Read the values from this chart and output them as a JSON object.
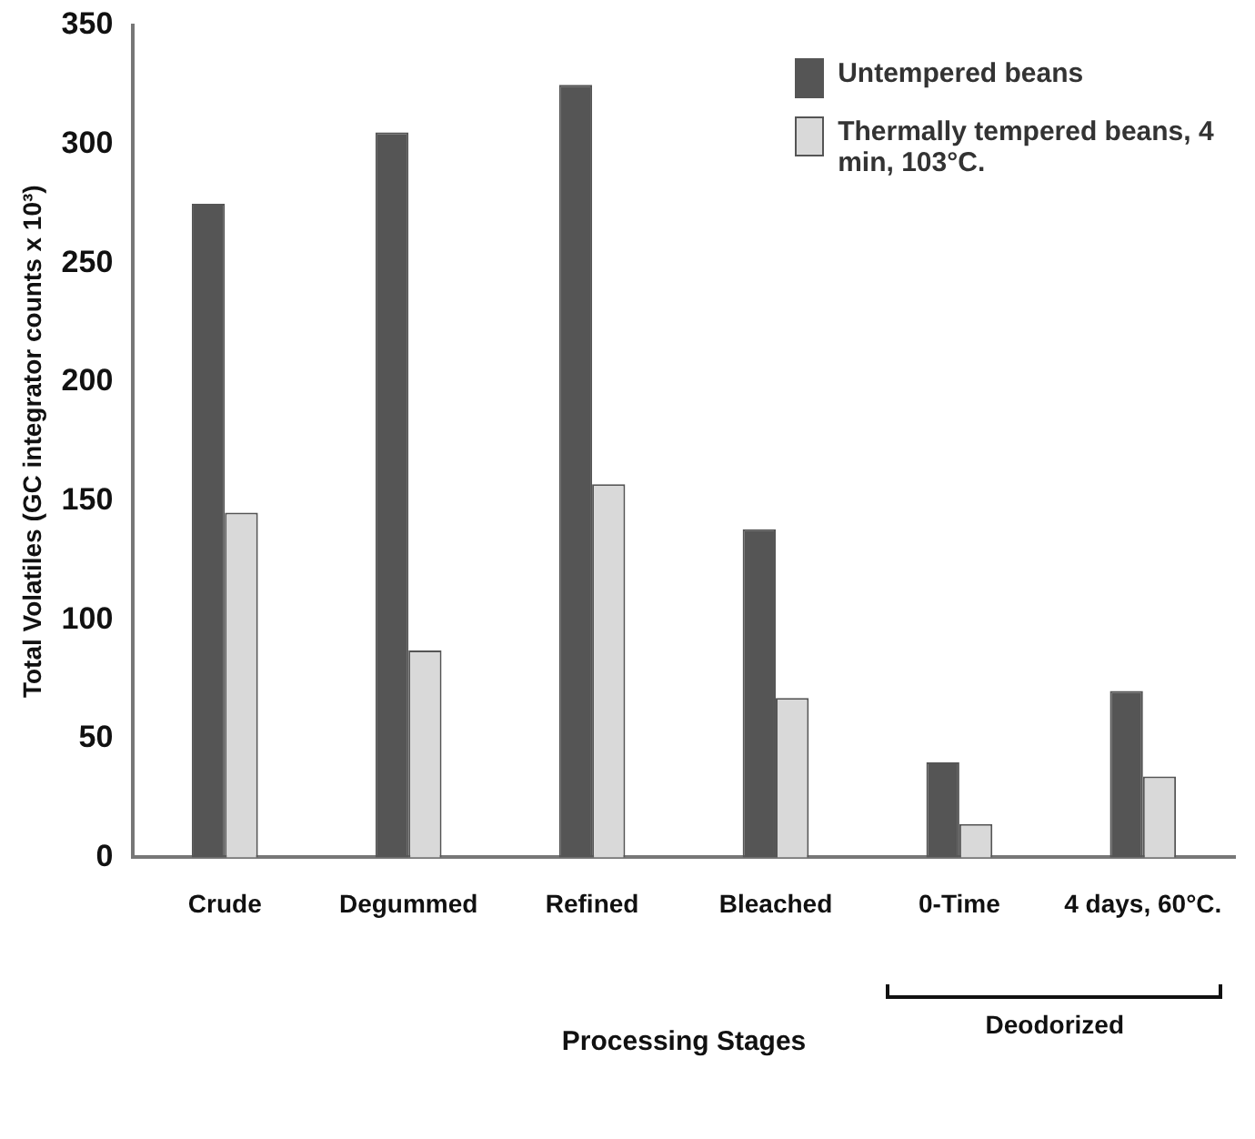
{
  "chart_data": {
    "type": "bar",
    "categories": [
      "Crude",
      "Degummed",
      "Refined",
      "Bleached",
      "0-Time",
      "4 days, 60°C."
    ],
    "series": [
      {
        "name": "Untempered beans",
        "color": "#555555",
        "values": [
          275,
          305,
          325,
          138,
          40,
          70
        ]
      },
      {
        "name": "Thermally tempered beans, 4 min, 103°C.",
        "color": "#d9d9d9",
        "values": [
          145,
          87,
          157,
          67,
          14,
          34
        ]
      }
    ],
    "xlabel": "Processing Stages",
    "ylabel": "Total Volatiles (GC integrator counts x 10³)",
    "ylim": [
      0,
      350
    ],
    "yticks": [
      0,
      50,
      100,
      150,
      200,
      250,
      300,
      350
    ],
    "grid": false,
    "legend": "top right",
    "annotations": [
      "Deodorized"
    ]
  }
}
